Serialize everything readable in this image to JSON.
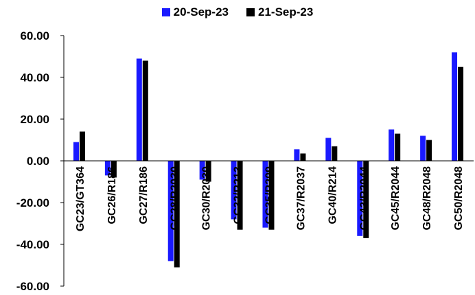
{
  "chart_data": {
    "type": "bar",
    "title": "",
    "xlabel": "",
    "ylabel": "",
    "ylim": [
      -60,
      60
    ],
    "yticks": [
      "60.00",
      "40.00",
      "20.00",
      "0.00",
      "-20.00",
      "-40.00",
      "-60.00"
    ],
    "legend_position": "top",
    "grid": false,
    "categories": [
      "GC23/GT364",
      "GC26/R186",
      "GC27/R186",
      "GC28/R2030",
      "GC30/R2030",
      "GC32/R213",
      "GC35/R209",
      "GC37/R2037",
      "GC40/R214",
      "GC43/R2044",
      "GC45/R2044",
      "GC48/R2048",
      "GC50/R2048"
    ],
    "series": [
      {
        "name": "20-Sep-23",
        "color": "#1a1aff",
        "values": [
          9,
          -7,
          49,
          -48,
          -9,
          -28,
          -32,
          5.5,
          11,
          -36,
          15,
          12,
          52
        ]
      },
      {
        "name": "21-Sep-23",
        "color": "#000000",
        "values": [
          14,
          -8,
          48,
          -51,
          -10,
          -33,
          -33,
          3.5,
          7,
          -37,
          13,
          10,
          45
        ]
      }
    ]
  }
}
